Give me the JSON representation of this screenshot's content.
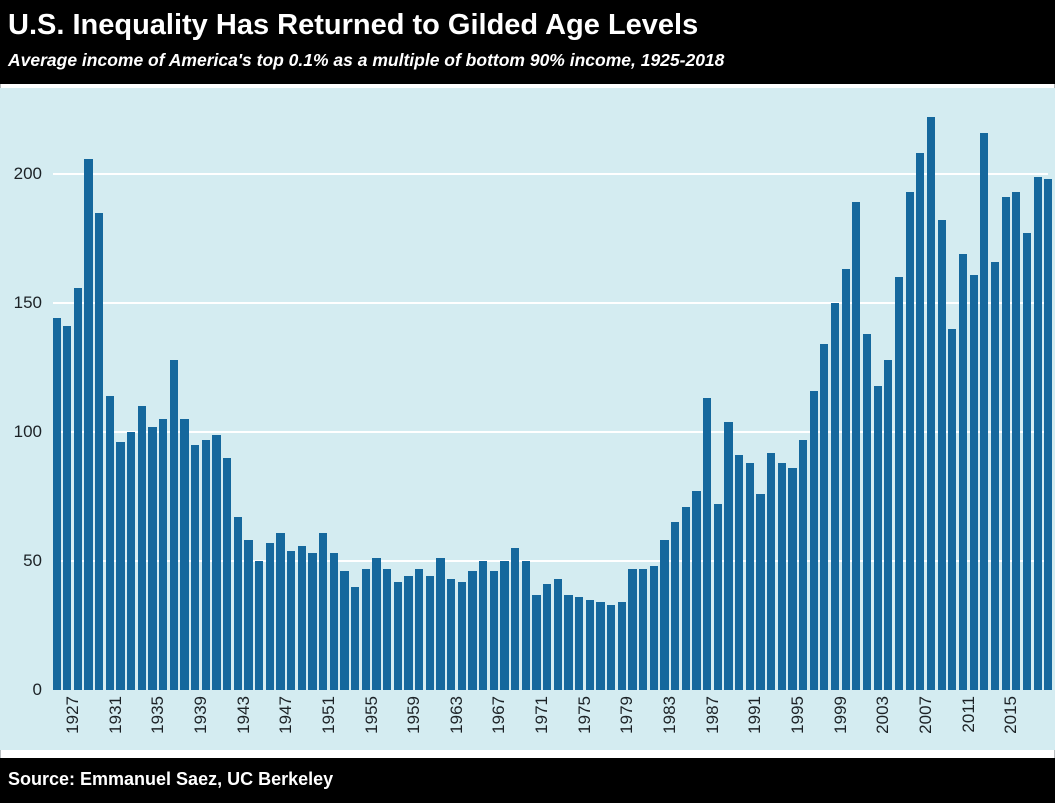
{
  "header": {
    "title": "U.S. Inequality Has Returned to Gilded Age Levels",
    "subtitle": "Average income of America's top 0.1% as a multiple of bottom 90% income, 1925-2018"
  },
  "footer": {
    "source": "Source: Emmanuel Saez, UC Berkeley"
  },
  "chart_data": {
    "type": "bar",
    "title": "U.S. Inequality Has Returned to Gilded Age Levels",
    "subtitle": "Average income of America's top 0.1% as a multiple of bottom 90% income, 1925-2018",
    "xlabel": "",
    "ylabel": "",
    "years": [
      1925,
      1926,
      1927,
      1928,
      1929,
      1930,
      1931,
      1932,
      1933,
      1934,
      1935,
      1936,
      1937,
      1938,
      1939,
      1940,
      1941,
      1942,
      1943,
      1944,
      1945,
      1946,
      1947,
      1948,
      1949,
      1950,
      1951,
      1952,
      1953,
      1954,
      1955,
      1956,
      1957,
      1958,
      1959,
      1960,
      1961,
      1962,
      1963,
      1964,
      1965,
      1966,
      1967,
      1968,
      1969,
      1970,
      1971,
      1972,
      1973,
      1974,
      1975,
      1976,
      1977,
      1978,
      1979,
      1980,
      1981,
      1982,
      1983,
      1984,
      1985,
      1986,
      1987,
      1988,
      1989,
      1990,
      1991,
      1992,
      1993,
      1994,
      1995,
      1996,
      1997,
      1998,
      1999,
      2000,
      2001,
      2002,
      2003,
      2004,
      2005,
      2006,
      2007,
      2008,
      2009,
      2010,
      2011,
      2012,
      2013,
      2014,
      2015,
      2016,
      2017,
      2018
    ],
    "values": [
      144,
      141,
      156,
      206,
      185,
      114,
      96,
      100,
      110,
      102,
      105,
      128,
      105,
      95,
      97,
      99,
      90,
      67,
      58,
      50,
      57,
      61,
      54,
      56,
      53,
      61,
      53,
      46,
      40,
      47,
      51,
      47,
      42,
      44,
      47,
      44,
      51,
      43,
      42,
      46,
      50,
      46,
      50,
      55,
      50,
      37,
      41,
      43,
      37,
      36,
      35,
      34,
      33,
      34,
      47,
      47,
      48,
      58,
      65,
      71,
      77,
      113,
      72,
      104,
      91,
      88,
      76,
      92,
      88,
      86,
      97,
      116,
      134,
      150,
      163,
      189,
      138,
      118,
      128,
      160,
      193,
      208,
      222,
      182,
      140,
      169,
      161,
      216,
      166,
      191,
      193,
      177,
      199,
      198
    ],
    "x_tick_labels": [
      "1927",
      "1931",
      "1935",
      "1939",
      "1943",
      "1947",
      "1951",
      "1955",
      "1959",
      "1963",
      "1967",
      "1971",
      "1975",
      "1979",
      "1983",
      "1987",
      "1991",
      "1995",
      "1999",
      "2003",
      "2007",
      "2011",
      "2015"
    ],
    "y_ticks": [
      0,
      50,
      100,
      150,
      200
    ],
    "ylim": [
      0,
      233
    ],
    "grid": true,
    "legend": "none",
    "colors": {
      "bar": "#15689d",
      "plot_background": "#d4ecf1",
      "gridline": "#ffffff",
      "band_background": "#000000",
      "band_text": "#ffffff",
      "axis_text": "#1c2226"
    }
  }
}
